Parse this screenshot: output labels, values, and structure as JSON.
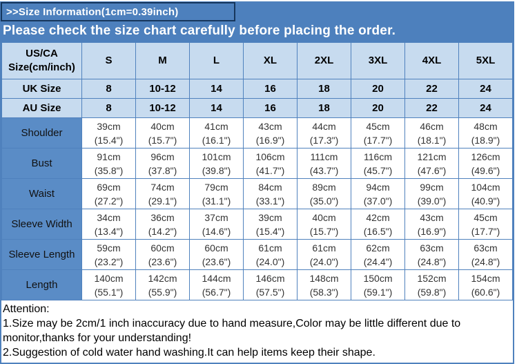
{
  "banner": {
    "title": ">>Size Information(1cm=0.39inch)",
    "subtitle": "Please check the size chart carefully before placing the order."
  },
  "colors": {
    "banner_blue": "#4d80bd",
    "border_blue": "#4f81bd",
    "light_blue": "#c7dbef",
    "label_blue": "#5a8cc6",
    "title_box_border": "#16365c"
  },
  "table": {
    "corner_label_line1": "US/CA",
    "corner_label_line2": "Size(cm/inch)",
    "columns": [
      "S",
      "M",
      "L",
      "XL",
      "2XL",
      "3XL",
      "4XL",
      "5XL"
    ],
    "size_rows": [
      {
        "label": "UK Size",
        "values": [
          "8",
          "10-12",
          "14",
          "16",
          "18",
          "20",
          "22",
          "24"
        ]
      },
      {
        "label": "AU Size",
        "values": [
          "8",
          "10-12",
          "14",
          "16",
          "18",
          "20",
          "22",
          "24"
        ]
      }
    ],
    "measurement_rows": [
      {
        "label": "Shoulder",
        "cm": [
          "39cm",
          "40cm",
          "41cm",
          "43cm",
          "44cm",
          "45cm",
          "46cm",
          "48cm"
        ],
        "inch": [
          "(15.4\")",
          "(15.7\")",
          "(16.1\")",
          "(16.9\")",
          "(17.3\")",
          "(17.7\")",
          "(18.1\")",
          "(18.9\")"
        ]
      },
      {
        "label": "Bust",
        "cm": [
          "91cm",
          "96cm",
          "101cm",
          "106cm",
          "111cm",
          "116cm",
          "121cm",
          "126cm"
        ],
        "inch": [
          "(35.8\")",
          "(37.8\")",
          "(39.8\")",
          "(41.7\")",
          "(43.7\")",
          "(45.7\")",
          "(47.6\")",
          "(49.6\")"
        ]
      },
      {
        "label": "Waist",
        "cm": [
          "69cm",
          "74cm",
          "79cm",
          "84cm",
          "89cm",
          "94cm",
          "99cm",
          "104cm"
        ],
        "inch": [
          "(27.2\")",
          "(29.1\")",
          "(31.1\")",
          "(33.1\")",
          "(35.0\")",
          "(37.0\")",
          "(39.0\")",
          "(40.9\")"
        ]
      },
      {
        "label": "Sleeve Width",
        "cm": [
          "34cm",
          "36cm",
          "37cm",
          "39cm",
          "40cm",
          "42cm",
          "43cm",
          "45cm"
        ],
        "inch": [
          "(13.4\")",
          "(14.2\")",
          "(14.6\")",
          "(15.4\")",
          "(15.7\")",
          "(16.5\")",
          "(16.9\")",
          "(17.7\")"
        ]
      },
      {
        "label": "Sleeve Length",
        "cm": [
          "59cm",
          "60cm",
          "60cm",
          "61cm",
          "61cm",
          "62cm",
          "63cm",
          "63cm"
        ],
        "inch": [
          "(23.2\")",
          "(23.6\")",
          "(23.6\")",
          "(24.0\")",
          "(24.0\")",
          "(24.4\")",
          "(24.8\")",
          "(24.8\")"
        ]
      },
      {
        "label": "Length",
        "cm": [
          "140cm",
          "142cm",
          "144cm",
          "146cm",
          "148cm",
          "150cm",
          "152cm",
          "154cm"
        ],
        "inch": [
          "(55.1\")",
          "(55.9\")",
          "(56.7\")",
          "(57.5\")",
          "(58.3\")",
          "(59.1\")",
          "(59.8\")",
          "(60.6\")"
        ]
      }
    ]
  },
  "attention": {
    "heading": "Attention:",
    "note1": "1.Size may be 2cm/1 inch inaccuracy due to hand measure,Color may be little different due to monitor,thanks for your understanding!",
    "note2": "2.Suggestion of cold water hand washing.It can help items keep their shape."
  }
}
